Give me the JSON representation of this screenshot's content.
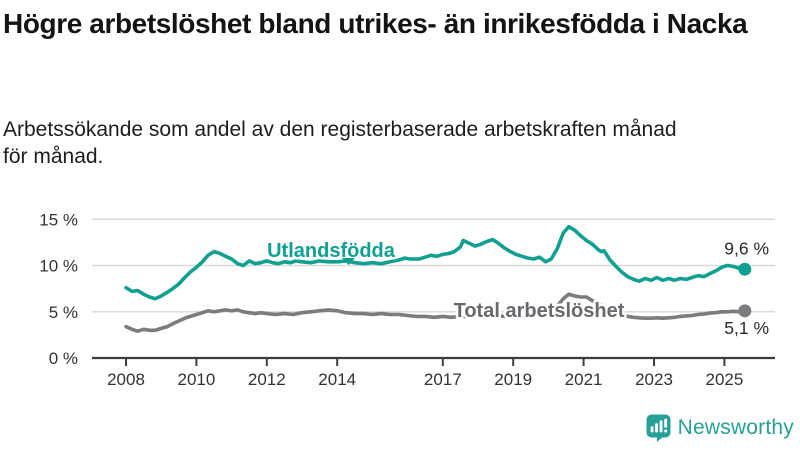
{
  "header": {
    "title": "Högre arbetslöshet bland utrikes- än inrikesfödda i Nacka",
    "subtitle": "Arbetssökande som andel av den registerbaserade arbetskraften månad för månad."
  },
  "footer": {
    "brand": "Newsworthy"
  },
  "colors": {
    "accent_teal": "#10A091",
    "line_gray": "#7B7B80",
    "label_gray": "#68686E",
    "axis": "#3D3D40",
    "gridline": "#D9D9D9",
    "text_dark": "#2A2A2E",
    "logo_teal": "#27A098"
  },
  "chart_data": {
    "type": "line",
    "title": "Högre arbetslöshet bland utrikes- än inrikesfödda i Nacka",
    "subtitle": "Arbetssökande som andel av den registerbaserade arbetskraften månad för månad.",
    "xlabel": "",
    "ylabel": "",
    "unit": "%",
    "ylim": [
      0,
      15
    ],
    "x_domain": [
      2008,
      2025.58
    ],
    "grid": "horizontal",
    "legend": "inline-labels",
    "y_ticks": [
      {
        "value": 0,
        "label": "0 %"
      },
      {
        "value": 5,
        "label": "5 %"
      },
      {
        "value": 10,
        "label": "10 %"
      },
      {
        "value": 15,
        "label": "15 %"
      }
    ],
    "x_ticks": [
      {
        "value": 2008,
        "label": "2008"
      },
      {
        "value": 2010,
        "label": "2010"
      },
      {
        "value": 2012,
        "label": "2012"
      },
      {
        "value": 2014,
        "label": "2014"
      },
      {
        "value": 2017,
        "label": "2017"
      },
      {
        "value": 2019,
        "label": "2019"
      },
      {
        "value": 2021,
        "label": "2021"
      },
      {
        "value": 2023,
        "label": "2023"
      },
      {
        "value": 2025,
        "label": "2025"
      }
    ],
    "series": [
      {
        "id": "utlandsfodda",
        "name": "Utlandsfödda",
        "color": "#10A091",
        "end_value": 9.6,
        "end_label": "9,6 %",
        "points": [
          [
            2008.0,
            7.6
          ],
          [
            2008.17,
            7.2
          ],
          [
            2008.33,
            7.3
          ],
          [
            2008.5,
            6.9
          ],
          [
            2008.67,
            6.6
          ],
          [
            2008.83,
            6.4
          ],
          [
            2009.0,
            6.7
          ],
          [
            2009.17,
            7.1
          ],
          [
            2009.33,
            7.5
          ],
          [
            2009.5,
            8.0
          ],
          [
            2009.67,
            8.7
          ],
          [
            2009.83,
            9.3
          ],
          [
            2010.0,
            9.8
          ],
          [
            2010.17,
            10.4
          ],
          [
            2010.33,
            11.1
          ],
          [
            2010.5,
            11.5
          ],
          [
            2010.67,
            11.3
          ],
          [
            2010.83,
            11.0
          ],
          [
            2011.0,
            10.7
          ],
          [
            2011.17,
            10.2
          ],
          [
            2011.33,
            10.0
          ],
          [
            2011.5,
            10.5
          ],
          [
            2011.67,
            10.2
          ],
          [
            2011.83,
            10.3
          ],
          [
            2012.0,
            10.5
          ],
          [
            2012.17,
            10.3
          ],
          [
            2012.33,
            10.2
          ],
          [
            2012.5,
            10.4
          ],
          [
            2012.67,
            10.3
          ],
          [
            2012.83,
            10.5
          ],
          [
            2013.0,
            10.4
          ],
          [
            2013.25,
            10.3
          ],
          [
            2013.5,
            10.5
          ],
          [
            2013.75,
            10.4
          ],
          [
            2014.0,
            10.4
          ],
          [
            2014.25,
            10.5
          ],
          [
            2014.5,
            10.3
          ],
          [
            2014.75,
            10.2
          ],
          [
            2015.0,
            10.3
          ],
          [
            2015.25,
            10.2
          ],
          [
            2015.5,
            10.4
          ],
          [
            2015.75,
            10.6
          ],
          [
            2015.92,
            10.8
          ],
          [
            2016.08,
            10.7
          ],
          [
            2016.33,
            10.7
          ],
          [
            2016.5,
            10.9
          ],
          [
            2016.67,
            11.1
          ],
          [
            2016.83,
            11.0
          ],
          [
            2017.0,
            11.2
          ],
          [
            2017.17,
            11.3
          ],
          [
            2017.33,
            11.5
          ],
          [
            2017.5,
            12.0
          ],
          [
            2017.58,
            12.7
          ],
          [
            2017.75,
            12.4
          ],
          [
            2017.92,
            12.1
          ],
          [
            2018.08,
            12.3
          ],
          [
            2018.25,
            12.6
          ],
          [
            2018.42,
            12.8
          ],
          [
            2018.58,
            12.4
          ],
          [
            2018.75,
            11.9
          ],
          [
            2018.92,
            11.5
          ],
          [
            2019.08,
            11.2
          ],
          [
            2019.25,
            11.0
          ],
          [
            2019.42,
            10.8
          ],
          [
            2019.58,
            10.7
          ],
          [
            2019.75,
            10.9
          ],
          [
            2019.92,
            10.4
          ],
          [
            2020.08,
            10.7
          ],
          [
            2020.25,
            11.8
          ],
          [
            2020.42,
            13.5
          ],
          [
            2020.58,
            14.2
          ],
          [
            2020.75,
            13.8
          ],
          [
            2020.92,
            13.2
          ],
          [
            2021.08,
            12.7
          ],
          [
            2021.25,
            12.3
          ],
          [
            2021.42,
            11.7
          ],
          [
            2021.5,
            11.5
          ],
          [
            2021.58,
            11.6
          ],
          [
            2021.75,
            10.6
          ],
          [
            2021.92,
            9.9
          ],
          [
            2022.08,
            9.3
          ],
          [
            2022.25,
            8.8
          ],
          [
            2022.42,
            8.5
          ],
          [
            2022.58,
            8.3
          ],
          [
            2022.75,
            8.6
          ],
          [
            2022.92,
            8.4
          ],
          [
            2023.08,
            8.7
          ],
          [
            2023.25,
            8.4
          ],
          [
            2023.42,
            8.6
          ],
          [
            2023.58,
            8.4
          ],
          [
            2023.75,
            8.6
          ],
          [
            2023.92,
            8.5
          ],
          [
            2024.08,
            8.7
          ],
          [
            2024.25,
            8.9
          ],
          [
            2024.42,
            8.8
          ],
          [
            2024.58,
            9.1
          ],
          [
            2024.75,
            9.4
          ],
          [
            2024.92,
            9.8
          ],
          [
            2025.08,
            10.0
          ],
          [
            2025.25,
            9.9
          ],
          [
            2025.42,
            9.7
          ],
          [
            2025.58,
            9.6
          ]
        ]
      },
      {
        "id": "total",
        "name": "Total arbetslöshet",
        "color": "#7B7B80",
        "label_color": "#68686E",
        "end_value": 5.1,
        "end_label": "5,1 %",
        "points": [
          [
            2008.0,
            3.4
          ],
          [
            2008.17,
            3.1
          ],
          [
            2008.33,
            2.9
          ],
          [
            2008.5,
            3.1
          ],
          [
            2008.67,
            3.0
          ],
          [
            2008.83,
            3.0
          ],
          [
            2009.0,
            3.2
          ],
          [
            2009.17,
            3.4
          ],
          [
            2009.33,
            3.7
          ],
          [
            2009.5,
            4.0
          ],
          [
            2009.67,
            4.3
          ],
          [
            2009.83,
            4.5
          ],
          [
            2010.0,
            4.7
          ],
          [
            2010.17,
            4.9
          ],
          [
            2010.33,
            5.1
          ],
          [
            2010.5,
            5.0
          ],
          [
            2010.67,
            5.1
          ],
          [
            2010.83,
            5.2
          ],
          [
            2011.0,
            5.1
          ],
          [
            2011.17,
            5.2
          ],
          [
            2011.33,
            5.0
          ],
          [
            2011.5,
            4.9
          ],
          [
            2011.67,
            4.8
          ],
          [
            2011.83,
            4.9
          ],
          [
            2012.0,
            4.8
          ],
          [
            2012.25,
            4.7
          ],
          [
            2012.5,
            4.8
          ],
          [
            2012.75,
            4.7
          ],
          [
            2013.0,
            4.9
          ],
          [
            2013.25,
            5.0
          ],
          [
            2013.5,
            5.1
          ],
          [
            2013.75,
            5.2
          ],
          [
            2014.0,
            5.1
          ],
          [
            2014.25,
            4.9
          ],
          [
            2014.5,
            4.8
          ],
          [
            2014.75,
            4.8
          ],
          [
            2015.0,
            4.7
          ],
          [
            2015.25,
            4.8
          ],
          [
            2015.5,
            4.7
          ],
          [
            2015.75,
            4.7
          ],
          [
            2016.0,
            4.6
          ],
          [
            2016.25,
            4.5
          ],
          [
            2016.5,
            4.5
          ],
          [
            2016.75,
            4.4
          ],
          [
            2017.0,
            4.5
          ],
          [
            2017.25,
            4.4
          ],
          [
            2017.5,
            4.5
          ],
          [
            2017.75,
            4.5
          ],
          [
            2018.0,
            4.6
          ],
          [
            2018.25,
            4.5
          ],
          [
            2018.5,
            4.6
          ],
          [
            2018.75,
            4.5
          ],
          [
            2019.0,
            4.6
          ],
          [
            2019.25,
            4.6
          ],
          [
            2019.5,
            4.7
          ],
          [
            2019.75,
            4.8
          ],
          [
            2020.08,
            5.0
          ],
          [
            2020.25,
            5.6
          ],
          [
            2020.42,
            6.4
          ],
          [
            2020.58,
            6.9
          ],
          [
            2020.75,
            6.7
          ],
          [
            2020.92,
            6.6
          ],
          [
            2021.08,
            6.6
          ],
          [
            2021.25,
            6.2
          ],
          [
            2021.42,
            5.9
          ],
          [
            2021.58,
            5.6
          ],
          [
            2021.75,
            5.3
          ],
          [
            2021.92,
            5.0
          ],
          [
            2022.08,
            4.7
          ],
          [
            2022.25,
            4.5
          ],
          [
            2022.42,
            4.4
          ],
          [
            2022.58,
            4.35
          ],
          [
            2022.75,
            4.3
          ],
          [
            2022.92,
            4.3
          ],
          [
            2023.08,
            4.35
          ],
          [
            2023.25,
            4.3
          ],
          [
            2023.42,
            4.35
          ],
          [
            2023.58,
            4.4
          ],
          [
            2023.75,
            4.5
          ],
          [
            2023.92,
            4.55
          ],
          [
            2024.08,
            4.6
          ],
          [
            2024.25,
            4.7
          ],
          [
            2024.42,
            4.75
          ],
          [
            2024.58,
            4.85
          ],
          [
            2024.75,
            4.9
          ],
          [
            2024.92,
            5.0
          ],
          [
            2025.08,
            5.0
          ],
          [
            2025.25,
            5.05
          ],
          [
            2025.42,
            5.0
          ],
          [
            2025.58,
            5.1
          ]
        ]
      }
    ]
  }
}
